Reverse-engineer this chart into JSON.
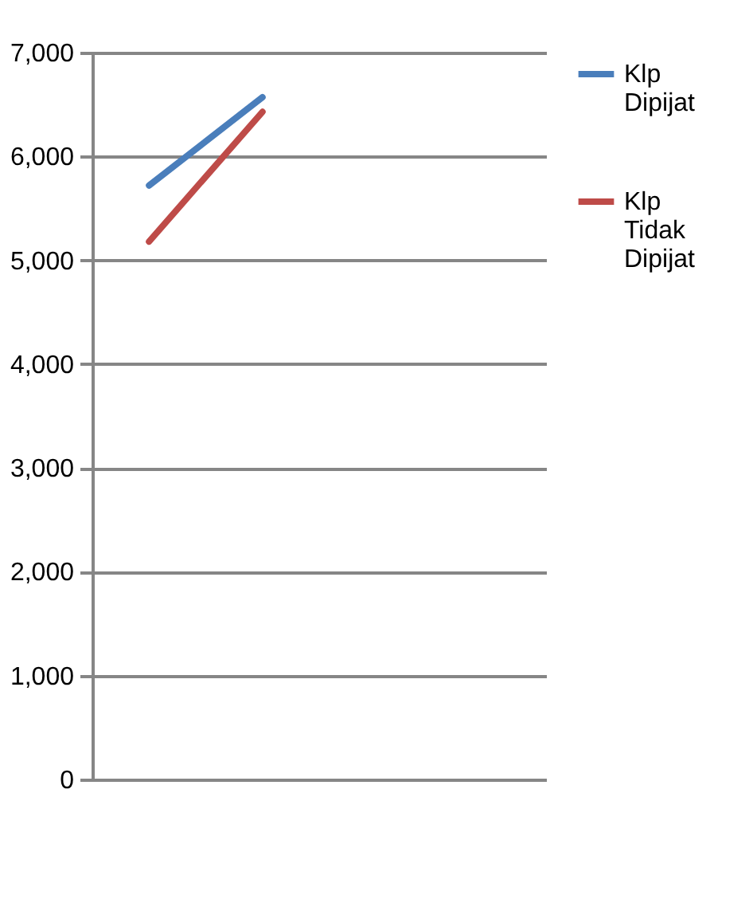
{
  "chart_data": {
    "type": "line",
    "categories": [
      null,
      null,
      null,
      null
    ],
    "series": [
      {
        "name": "Klp Dipijat",
        "color": "#4a7ebb",
        "values": [
          5720,
          6570,
          null,
          null
        ]
      },
      {
        "name": "Klp Tidak Dipijat",
        "color": "#be4b48",
        "values": [
          5180,
          6430,
          null,
          null
        ]
      }
    ],
    "ylim": [
      0,
      7000
    ],
    "yticks": [
      {
        "value": 0,
        "label": "0"
      },
      {
        "value": 1000,
        "label": "1,000"
      },
      {
        "value": 2000,
        "label": "2,000"
      },
      {
        "value": 3000,
        "label": "3,000"
      },
      {
        "value": 4000,
        "label": "4,000"
      },
      {
        "value": 5000,
        "label": "5,000"
      },
      {
        "value": 6000,
        "label": "6,000"
      },
      {
        "value": 7000,
        "label": "7,000"
      }
    ],
    "grid": "y",
    "legend": "right",
    "tick_labels": "y",
    "marker": "none",
    "line_style": "solid"
  }
}
